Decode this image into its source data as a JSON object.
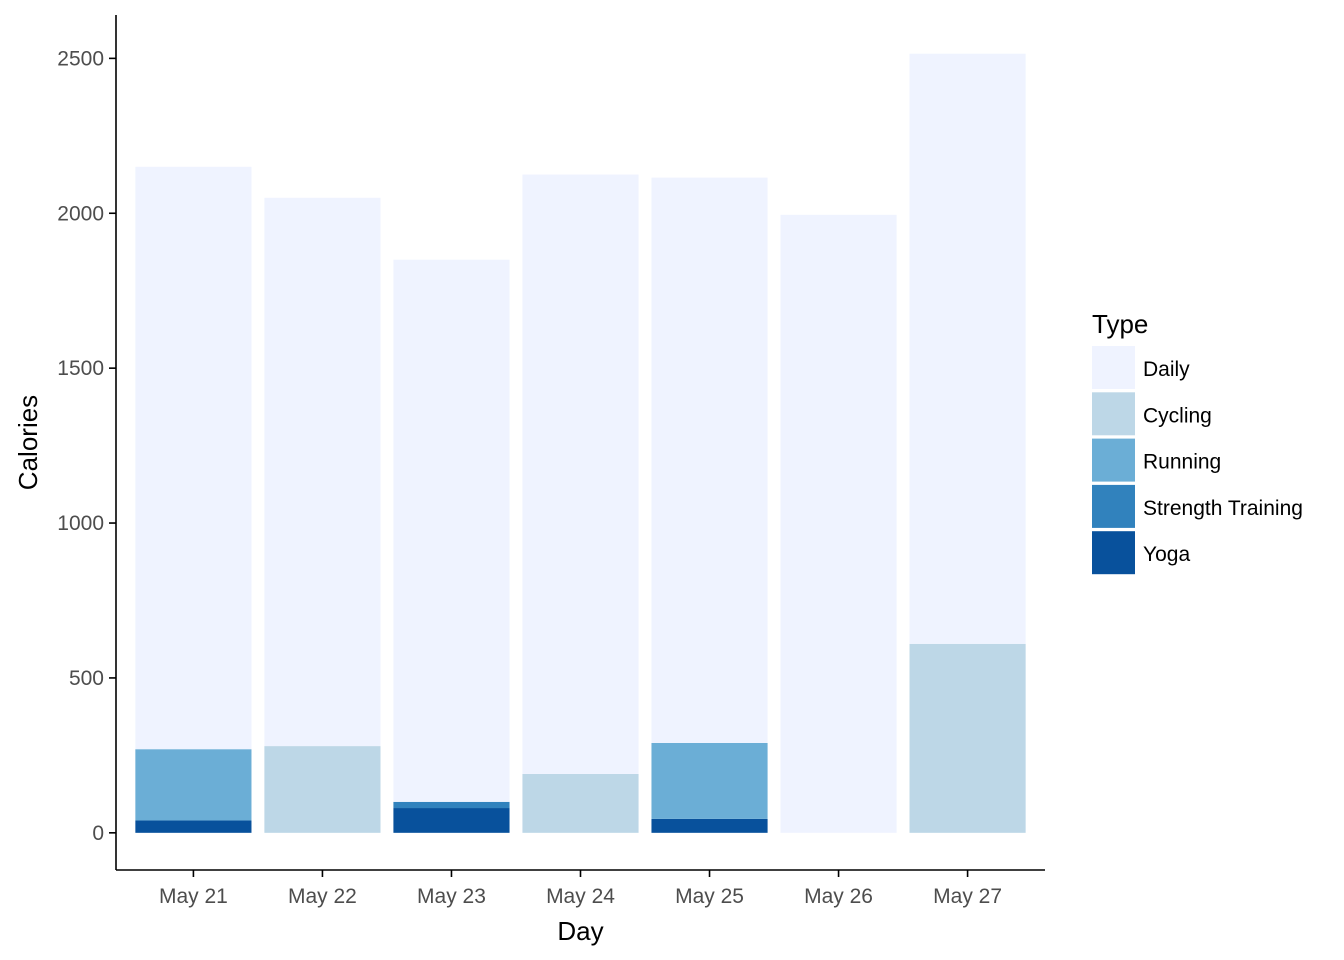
{
  "chart_data": {
    "type": "bar",
    "stacked": true,
    "title": "",
    "xlabel": "Day",
    "ylabel": "Calories",
    "ylim": [
      -120,
      2640
    ],
    "yticks": [
      0,
      500,
      1000,
      1500,
      2000,
      2500
    ],
    "ytick_labels": [
      "0",
      "500",
      "1000",
      "1500",
      "2000",
      "2500"
    ],
    "categories": [
      "May 21",
      "May 22",
      "May 23",
      "May 24",
      "May 25",
      "May 26",
      "May 27"
    ],
    "legend_title": "Type",
    "legend_position": "right",
    "grid": false,
    "series": [
      {
        "name": "Yoga",
        "color": "#08519c",
        "values": [
          40,
          0,
          80,
          0,
          45,
          0,
          0
        ]
      },
      {
        "name": "Strength Training",
        "color": "#3182bd",
        "values": [
          0,
          0,
          20,
          0,
          0,
          0,
          0
        ]
      },
      {
        "name": "Running",
        "color": "#6baed6",
        "values": [
          230,
          0,
          0,
          0,
          245,
          0,
          0
        ]
      },
      {
        "name": "Cycling",
        "color": "#bdd7e7",
        "values": [
          0,
          280,
          0,
          190,
          0,
          0,
          610
        ]
      },
      {
        "name": "Daily",
        "color": "#eff3ff",
        "values": [
          1880,
          1770,
          1750,
          1935,
          1825,
          1995,
          1905
        ]
      }
    ],
    "legend_order": [
      "Daily",
      "Cycling",
      "Running",
      "Strength Training",
      "Yoga"
    ]
  }
}
